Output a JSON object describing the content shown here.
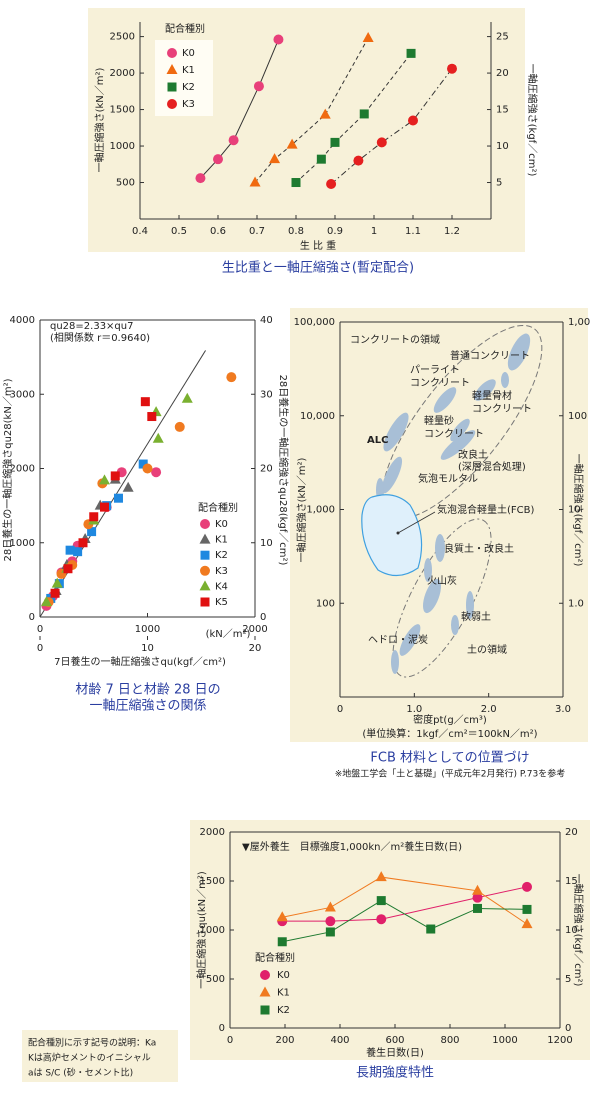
{
  "chart_data": [
    {
      "type": "scatter",
      "xlabel": "生 比 重",
      "ylabel": "一軸圧縮強さ(kN／m²)",
      "y2label": "一軸圧縮強さ(kgf／cm²)",
      "caption": [
        "生比重と一軸圧縮強さ(暫定配合)"
      ],
      "legend_title": "配合種別",
      "xlim": [
        0.4,
        1.3
      ],
      "xticks": [
        0.4,
        0.5,
        0.6,
        0.7,
        0.8,
        0.9,
        1.0,
        1.1,
        1.2
      ],
      "ylim": [
        0,
        2700
      ],
      "yticks": [
        500,
        1000,
        1500,
        2000,
        2500
      ],
      "y2lim": [
        0,
        27
      ],
      "y2ticks": [
        5,
        10,
        15,
        20,
        25
      ],
      "series": [
        {
          "name": "K0",
          "color": "#e8407a",
          "marker": "circle",
          "dash": "solid",
          "x": [
            0.555,
            0.6,
            0.64,
            0.705,
            0.755
          ],
          "values": [
            560,
            820,
            1080,
            1820,
            2460
          ]
        },
        {
          "name": "K1",
          "color": "#f06a10",
          "marker": "triangle",
          "dash": "dashed",
          "x": [
            0.695,
            0.745,
            0.79,
            0.875,
            0.985
          ],
          "values": [
            500,
            820,
            1020,
            1430,
            2480
          ]
        },
        {
          "name": "K2",
          "color": "#1e7a30",
          "marker": "square",
          "dash": "dashed",
          "x": [
            0.8,
            0.865,
            0.9,
            0.975,
            1.095
          ],
          "values": [
            500,
            820,
            1050,
            1440,
            2270
          ]
        },
        {
          "name": "K3",
          "color": "#e52020",
          "marker": "circle",
          "dash": "dashdot",
          "x": [
            0.89,
            0.96,
            1.02,
            1.1,
            1.2
          ],
          "values": [
            480,
            800,
            1050,
            1350,
            2060
          ]
        }
      ]
    },
    {
      "type": "scatter",
      "ylabel": "28日養生の一軸圧縮強さqu28(kN／m²)",
      "y2label": "28日養生の一軸圧縮強さqu28(kgf／cm²)",
      "x_unit": "(kN／m²)",
      "x2label": "7日養生の一軸圧縮強さqu(kgf／cm²)",
      "caption": [
        "材齢 7 日と材齢 28 日の",
        "一軸圧縮強さの関係"
      ],
      "legend_title": "配合種別",
      "annotations": [
        "qu28=2.33×qu7",
        "(相関係数 r＝0.9640)"
      ],
      "xlim": [
        0,
        2000
      ],
      "xticks": [
        0,
        1000,
        2000
      ],
      "x2lim": [
        0,
        20
      ],
      "x2ticks": [
        0,
        10,
        20
      ],
      "ylim": [
        0,
        4000
      ],
      "yticks": [
        0,
        1000,
        2000,
        3000,
        4000
      ],
      "y2lim": [
        0,
        40
      ],
      "y2ticks": [
        0,
        10,
        20,
        30,
        40
      ],
      "fit": {
        "color": "#444",
        "x": [
          0,
          1540
        ],
        "values": [
          0,
          3590
        ]
      },
      "series": [
        {
          "name": "K0",
          "color": "#e8407a",
          "marker": "circle",
          "x": [
            60,
            120,
            200,
            300,
            350,
            620,
            760,
            1080
          ],
          "values": [
            150,
            280,
            600,
            750,
            960,
            1480,
            1950,
            1950
          ]
        },
        {
          "name": "K1",
          "color": "#666666",
          "marker": "triangle",
          "x": [
            150,
            250,
            420,
            560,
            820,
            700
          ],
          "values": [
            350,
            700,
            1050,
            1500,
            1740,
            1850
          ]
        },
        {
          "name": "K2",
          "color": "#1e88e0",
          "marker": "square",
          "x": [
            100,
            180,
            280,
            350,
            480,
            620,
            960,
            730
          ],
          "values": [
            250,
            450,
            900,
            880,
            1150,
            1500,
            2060,
            1600
          ]
        },
        {
          "name": "K3",
          "color": "#f07a20",
          "marker": "circle",
          "x": [
            80,
            200,
            300,
            450,
            580,
            1000,
            1300,
            1780
          ],
          "values": [
            200,
            580,
            700,
            1250,
            1800,
            2000,
            2560,
            3230
          ]
        },
        {
          "name": "K4",
          "color": "#7ab030",
          "marker": "triangle",
          "x": [
            60,
            160,
            250,
            500,
            600,
            1100,
            1080,
            1370
          ],
          "values": [
            200,
            450,
            650,
            1300,
            1840,
            2400,
            2760,
            2940
          ]
        },
        {
          "name": "K5",
          "color": "#e01010",
          "marker": "square",
          "x": [
            140,
            260,
            400,
            500,
            700,
            980,
            1040,
            600
          ],
          "values": [
            320,
            650,
            1000,
            1350,
            1900,
            2900,
            2700,
            1480
          ]
        }
      ]
    },
    {
      "type": "region",
      "ylog": true,
      "y2log": true,
      "xlabel": "密度pt(g／cm³)",
      "x_note": "(単位換算：1kgf／cm²＝100kN／m²)",
      "ylabel": "一軸圧縮強さ(kN／m²)",
      "y2label": "一軸圧縮強さ(kgf／cm²)",
      "caption": [
        "FCB 材料としての位置づけ",
        "※地盤工学会「土と基礎」(平成元年2月発行) P.73を参考"
      ],
      "annotations": [
        "コンクリートの領域",
        "普通コンクリート",
        "パーライト",
        "コンクリート",
        "軽量骨材",
        "コンクリート",
        "軽量砂",
        "コンクリート",
        "ALC",
        "改良土",
        "(深層混合処理)",
        "気泡モルタル",
        "気泡混合軽量土(FCB)",
        "良質土・改良土",
        "火山灰",
        "軟弱土",
        "ヘドロ・泥炭",
        "土の領域"
      ],
      "xlim": [
        0,
        3.0
      ],
      "xticks": [
        0,
        {
          "value": 1,
          "label": "1.0"
        },
        {
          "value": 2,
          "label": "2.0"
        },
        {
          "value": 3,
          "label": "3.0"
        }
      ],
      "ylim": [
        10,
        100000
      ],
      "yticks": [
        100,
        {
          "value": 1000,
          "label": "1,000"
        },
        {
          "value": 10000,
          "label": "10,000"
        },
        {
          "value": 100000,
          "label": "100,000"
        }
      ],
      "y2lim": [
        0.1,
        1000
      ],
      "y2ticks": [
        {
          "value": 1,
          "label": "1.0"
        },
        10,
        100,
        {
          "value": 1000,
          "label": "1,000"
        }
      ]
    },
    {
      "type": "line",
      "title": "▼屋外養生　目標強度1,000kn／m²養生日数(日)",
      "xlabel": "養生日数(日)",
      "ylabel": "一軸圧縮強さqu(kN／m²)",
      "y2label": "一軸圧縮強さ(kgf／cm²)",
      "caption": [
        "長期強度特性"
      ],
      "legend_title": "配合種別",
      "xlim": [
        0,
        1200
      ],
      "xticks": [
        0,
        200,
        400,
        600,
        800,
        1000,
        1200
      ],
      "ylim": [
        0,
        2000
      ],
      "yticks": [
        0,
        500,
        1000,
        1500,
        2000
      ],
      "y2lim": [
        0,
        20
      ],
      "y2ticks": [
        0,
        5,
        10,
        15,
        20
      ],
      "series": [
        {
          "name": "K0",
          "color": "#e0206a",
          "marker": "circle",
          "dash": "solid",
          "x": [
            190,
            365,
            550,
            900,
            1080
          ],
          "values": [
            1090,
            1090,
            1110,
            1330,
            1440
          ]
        },
        {
          "name": "K1",
          "color": "#f07a20",
          "marker": "triangle",
          "dash": "solid",
          "x": [
            190,
            365,
            550,
            900,
            1080
          ],
          "values": [
            1130,
            1230,
            1540,
            1400,
            1060
          ]
        },
        {
          "name": "K2",
          "color": "#1e7a30",
          "marker": "square",
          "dash": "solid",
          "x": [
            190,
            365,
            550,
            730,
            900,
            1080
          ],
          "values": [
            880,
            980,
            1300,
            1010,
            1220,
            1210
          ]
        }
      ]
    }
  ],
  "note": [
    "配合種別に示す記号の説明：Ka",
    "Kは高炉セメントのイニシャル",
    "aは S/C (砂・セメント比)"
  ]
}
